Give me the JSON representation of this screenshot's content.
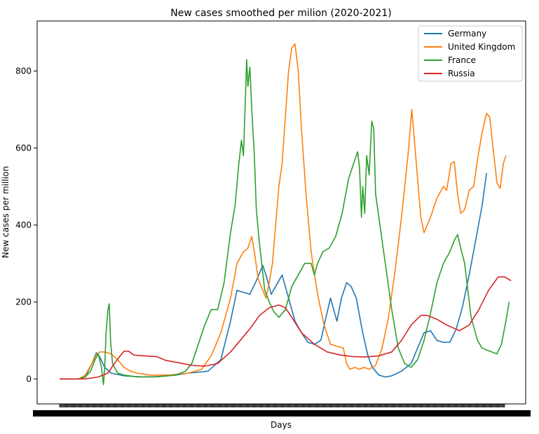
{
  "chart_data": {
    "type": "line",
    "title": "New cases smoothed per milion (2020-2021)",
    "xlabel": "Days",
    "ylabel": "New cases per million",
    "ylim": [
      -65,
      930
    ],
    "yticks": [
      0,
      200,
      400,
      600,
      800
    ],
    "legend": "top-right",
    "grid": false,
    "x_range": [
      0,
      690
    ],
    "series": [
      {
        "name": "Germany",
        "color": "#1f77b4",
        "points": [
          [
            0,
            0
          ],
          [
            30,
            0
          ],
          [
            40,
            5
          ],
          [
            50,
            40
          ],
          [
            57,
            68
          ],
          [
            62,
            58
          ],
          [
            70,
            30
          ],
          [
            80,
            15
          ],
          [
            100,
            8
          ],
          [
            130,
            5
          ],
          [
            150,
            6
          ],
          [
            180,
            10
          ],
          [
            200,
            15
          ],
          [
            230,
            20
          ],
          [
            250,
            50
          ],
          [
            265,
            150
          ],
          [
            275,
            230
          ],
          [
            285,
            225
          ],
          [
            295,
            220
          ],
          [
            305,
            255
          ],
          [
            315,
            295
          ],
          [
            320,
            270
          ],
          [
            328,
            220
          ],
          [
            335,
            240
          ],
          [
            345,
            270
          ],
          [
            355,
            210
          ],
          [
            365,
            150
          ],
          [
            375,
            120
          ],
          [
            385,
            95
          ],
          [
            395,
            90
          ],
          [
            405,
            100
          ],
          [
            413,
            160
          ],
          [
            420,
            210
          ],
          [
            425,
            180
          ],
          [
            430,
            150
          ],
          [
            437,
            210
          ],
          [
            445,
            250
          ],
          [
            452,
            240
          ],
          [
            460,
            210
          ],
          [
            470,
            120
          ],
          [
            478,
            60
          ],
          [
            485,
            30
          ],
          [
            495,
            10
          ],
          [
            505,
            5
          ],
          [
            515,
            8
          ],
          [
            530,
            20
          ],
          [
            545,
            40
          ],
          [
            555,
            80
          ],
          [
            565,
            120
          ],
          [
            575,
            125
          ],
          [
            585,
            100
          ],
          [
            595,
            95
          ],
          [
            605,
            95
          ],
          [
            615,
            130
          ],
          [
            625,
            190
          ],
          [
            635,
            270
          ],
          [
            645,
            360
          ],
          [
            655,
            450
          ],
          [
            662,
            535
          ]
        ]
      },
      {
        "name": "United Kingdom",
        "color": "#ff7f0e",
        "points": [
          [
            0,
            0
          ],
          [
            30,
            0
          ],
          [
            40,
            10
          ],
          [
            50,
            40
          ],
          [
            56,
            60
          ],
          [
            62,
            70
          ],
          [
            70,
            70
          ],
          [
            80,
            65
          ],
          [
            90,
            50
          ],
          [
            100,
            30
          ],
          [
            110,
            20
          ],
          [
            120,
            15
          ],
          [
            140,
            10
          ],
          [
            170,
            10
          ],
          [
            200,
            15
          ],
          [
            220,
            25
          ],
          [
            235,
            60
          ],
          [
            250,
            120
          ],
          [
            265,
            210
          ],
          [
            275,
            300
          ],
          [
            285,
            330
          ],
          [
            292,
            340
          ],
          [
            298,
            370
          ],
          [
            302,
            330
          ],
          [
            308,
            260
          ],
          [
            315,
            230
          ],
          [
            320,
            210
          ],
          [
            325,
            250
          ],
          [
            330,
            300
          ],
          [
            335,
            400
          ],
          [
            340,
            500
          ],
          [
            345,
            560
          ],
          [
            350,
            680
          ],
          [
            355,
            800
          ],
          [
            360,
            860
          ],
          [
            365,
            870
          ],
          [
            370,
            800
          ],
          [
            375,
            650
          ],
          [
            382,
            480
          ],
          [
            390,
            330
          ],
          [
            400,
            220
          ],
          [
            410,
            140
          ],
          [
            420,
            90
          ],
          [
            430,
            85
          ],
          [
            440,
            80
          ],
          [
            445,
            40
          ],
          [
            450,
            25
          ],
          [
            458,
            30
          ],
          [
            465,
            25
          ],
          [
            472,
            30
          ],
          [
            480,
            25
          ],
          [
            490,
            35
          ],
          [
            500,
            80
          ],
          [
            510,
            160
          ],
          [
            520,
            280
          ],
          [
            530,
            420
          ],
          [
            540,
            580
          ],
          [
            546,
            700
          ],
          [
            550,
            620
          ],
          [
            555,
            520
          ],
          [
            560,
            420
          ],
          [
            565,
            380
          ],
          [
            575,
            420
          ],
          [
            585,
            470
          ],
          [
            595,
            500
          ],
          [
            600,
            490
          ],
          [
            607,
            560
          ],
          [
            612,
            565
          ],
          [
            617,
            480
          ],
          [
            622,
            430
          ],
          [
            628,
            440
          ],
          [
            635,
            490
          ],
          [
            642,
            500
          ],
          [
            648,
            570
          ],
          [
            655,
            640
          ],
          [
            662,
            690
          ],
          [
            667,
            680
          ],
          [
            672,
            600
          ],
          [
            678,
            510
          ],
          [
            683,
            495
          ],
          [
            688,
            560
          ],
          [
            692,
            580
          ]
        ]
      },
      {
        "name": "France",
        "color": "#2ca02c",
        "points": [
          [
            0,
            0
          ],
          [
            30,
            0
          ],
          [
            40,
            5
          ],
          [
            48,
            20
          ],
          [
            55,
            50
          ],
          [
            60,
            65
          ],
          [
            65,
            30
          ],
          [
            68,
            -15
          ],
          [
            70,
            30
          ],
          [
            72,
            120
          ],
          [
            75,
            180
          ],
          [
            77,
            195
          ],
          [
            79,
            100
          ],
          [
            82,
            40
          ],
          [
            90,
            15
          ],
          [
            100,
            10
          ],
          [
            120,
            5
          ],
          [
            150,
            5
          ],
          [
            180,
            10
          ],
          [
            195,
            20
          ],
          [
            205,
            40
          ],
          [
            215,
            90
          ],
          [
            225,
            140
          ],
          [
            235,
            180
          ],
          [
            245,
            180
          ],
          [
            255,
            250
          ],
          [
            265,
            380
          ],
          [
            272,
            450
          ],
          [
            278,
            560
          ],
          [
            282,
            620
          ],
          [
            285,
            580
          ],
          [
            288,
            720
          ],
          [
            290,
            830
          ],
          [
            292,
            760
          ],
          [
            295,
            810
          ],
          [
            298,
            700
          ],
          [
            302,
            580
          ],
          [
            305,
            440
          ],
          [
            310,
            350
          ],
          [
            318,
            230
          ],
          [
            325,
            200
          ],
          [
            332,
            175
          ],
          [
            340,
            160
          ],
          [
            350,
            180
          ],
          [
            360,
            240
          ],
          [
            370,
            270
          ],
          [
            380,
            300
          ],
          [
            390,
            300
          ],
          [
            395,
            270
          ],
          [
            400,
            300
          ],
          [
            408,
            330
          ],
          [
            418,
            340
          ],
          [
            428,
            370
          ],
          [
            438,
            430
          ],
          [
            448,
            520
          ],
          [
            458,
            570
          ],
          [
            462,
            590
          ],
          [
            465,
            550
          ],
          [
            468,
            420
          ],
          [
            470,
            500
          ],
          [
            473,
            430
          ],
          [
            476,
            580
          ],
          [
            480,
            530
          ],
          [
            484,
            670
          ],
          [
            487,
            650
          ],
          [
            490,
            480
          ],
          [
            495,
            420
          ],
          [
            505,
            300
          ],
          [
            515,
            180
          ],
          [
            525,
            80
          ],
          [
            535,
            40
          ],
          [
            545,
            30
          ],
          [
            555,
            50
          ],
          [
            565,
            100
          ],
          [
            575,
            170
          ],
          [
            585,
            250
          ],
          [
            595,
            300
          ],
          [
            605,
            330
          ],
          [
            612,
            360
          ],
          [
            617,
            375
          ],
          [
            622,
            340
          ],
          [
            628,
            300
          ],
          [
            633,
            230
          ],
          [
            638,
            160
          ],
          [
            643,
            130
          ],
          [
            648,
            100
          ],
          [
            655,
            80
          ],
          [
            662,
            75
          ],
          [
            670,
            70
          ],
          [
            678,
            65
          ],
          [
            685,
            90
          ],
          [
            692,
            150
          ],
          [
            697,
            200
          ]
        ]
      },
      {
        "name": "Russia",
        "color": "#d62728",
        "points": [
          [
            0,
            0
          ],
          [
            40,
            0
          ],
          [
            60,
            5
          ],
          [
            75,
            15
          ],
          [
            85,
            40
          ],
          [
            95,
            62
          ],
          [
            100,
            72
          ],
          [
            107,
            72
          ],
          [
            115,
            62
          ],
          [
            130,
            60
          ],
          [
            150,
            58
          ],
          [
            165,
            48
          ],
          [
            185,
            42
          ],
          [
            205,
            35
          ],
          [
            225,
            33
          ],
          [
            245,
            40
          ],
          [
            265,
            70
          ],
          [
            280,
            100
          ],
          [
            295,
            130
          ],
          [
            310,
            165
          ],
          [
            325,
            185
          ],
          [
            340,
            192
          ],
          [
            350,
            185
          ],
          [
            360,
            160
          ],
          [
            375,
            120
          ],
          [
            395,
            90
          ],
          [
            415,
            70
          ],
          [
            435,
            62
          ],
          [
            455,
            58
          ],
          [
            475,
            57
          ],
          [
            495,
            60
          ],
          [
            515,
            70
          ],
          [
            530,
            100
          ],
          [
            545,
            140
          ],
          [
            560,
            165
          ],
          [
            570,
            165
          ],
          [
            585,
            155
          ],
          [
            600,
            140
          ],
          [
            620,
            125
          ],
          [
            635,
            140
          ],
          [
            650,
            180
          ],
          [
            665,
            230
          ],
          [
            680,
            265
          ],
          [
            690,
            265
          ],
          [
            700,
            255
          ]
        ]
      }
    ],
    "x_tick_count": 700
  }
}
